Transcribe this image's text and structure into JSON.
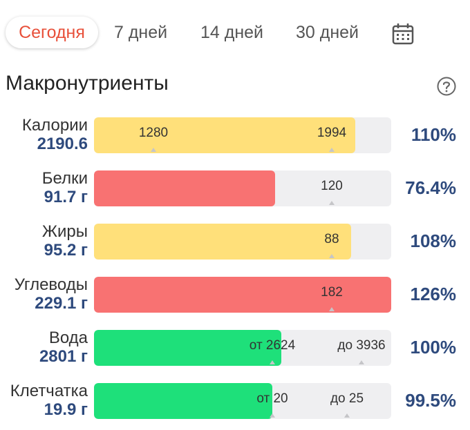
{
  "tabs": [
    {
      "label": "Сегодня",
      "active": true
    },
    {
      "label": "7 дней",
      "active": false
    },
    {
      "label": "14 дней",
      "active": false
    },
    {
      "label": "30 дней",
      "active": false
    }
  ],
  "icons": {
    "calendar": "calendar-icon",
    "help": "help-circle-icon"
  },
  "colors": {
    "accent": "#e8503a",
    "yellow": "#ffe07a",
    "red": "#f87272",
    "green": "#1ee07a",
    "value": "#2e4a7d"
  },
  "section_title": "Макронутриенты",
  "rows": [
    {
      "name": "Калории",
      "value": "2190.6",
      "percent": "110%",
      "fill_fraction": 0.88,
      "color": "#ffe07a",
      "marks": [
        {
          "text": "1280",
          "at": 0.2
        },
        {
          "text": "1994",
          "at": 0.8
        }
      ]
    },
    {
      "name": "Белки",
      "value": "91.7 г",
      "percent": "76.4%",
      "fill_fraction": 0.61,
      "color": "#f87272",
      "marks": [
        {
          "text": "120",
          "at": 0.8
        }
      ]
    },
    {
      "name": "Жиры",
      "value": "95.2 г",
      "percent": "108%",
      "fill_fraction": 0.865,
      "color": "#ffe07a",
      "marks": [
        {
          "text": "88",
          "at": 0.8
        }
      ]
    },
    {
      "name": "Углеводы",
      "value": "229.1 г",
      "percent": "126%",
      "fill_fraction": 1.0,
      "color": "#f87272",
      "marks": [
        {
          "text": "182",
          "at": 0.8
        }
      ]
    },
    {
      "name": "Вода",
      "value": "2801 г",
      "percent": "100%",
      "fill_fraction": 0.63,
      "color": "#1ee07a",
      "marks": [
        {
          "text": "от 2624",
          "at": 0.6
        },
        {
          "text": "до 3936",
          "at": 0.9
        }
      ]
    },
    {
      "name": "Клетчатка",
      "value": "19.9 г",
      "percent": "99.5%",
      "fill_fraction": 0.6,
      "color": "#1ee07a",
      "marks": [
        {
          "text": "от 20",
          "at": 0.6
        },
        {
          "text": "до 25",
          "at": 0.85
        }
      ]
    }
  ]
}
